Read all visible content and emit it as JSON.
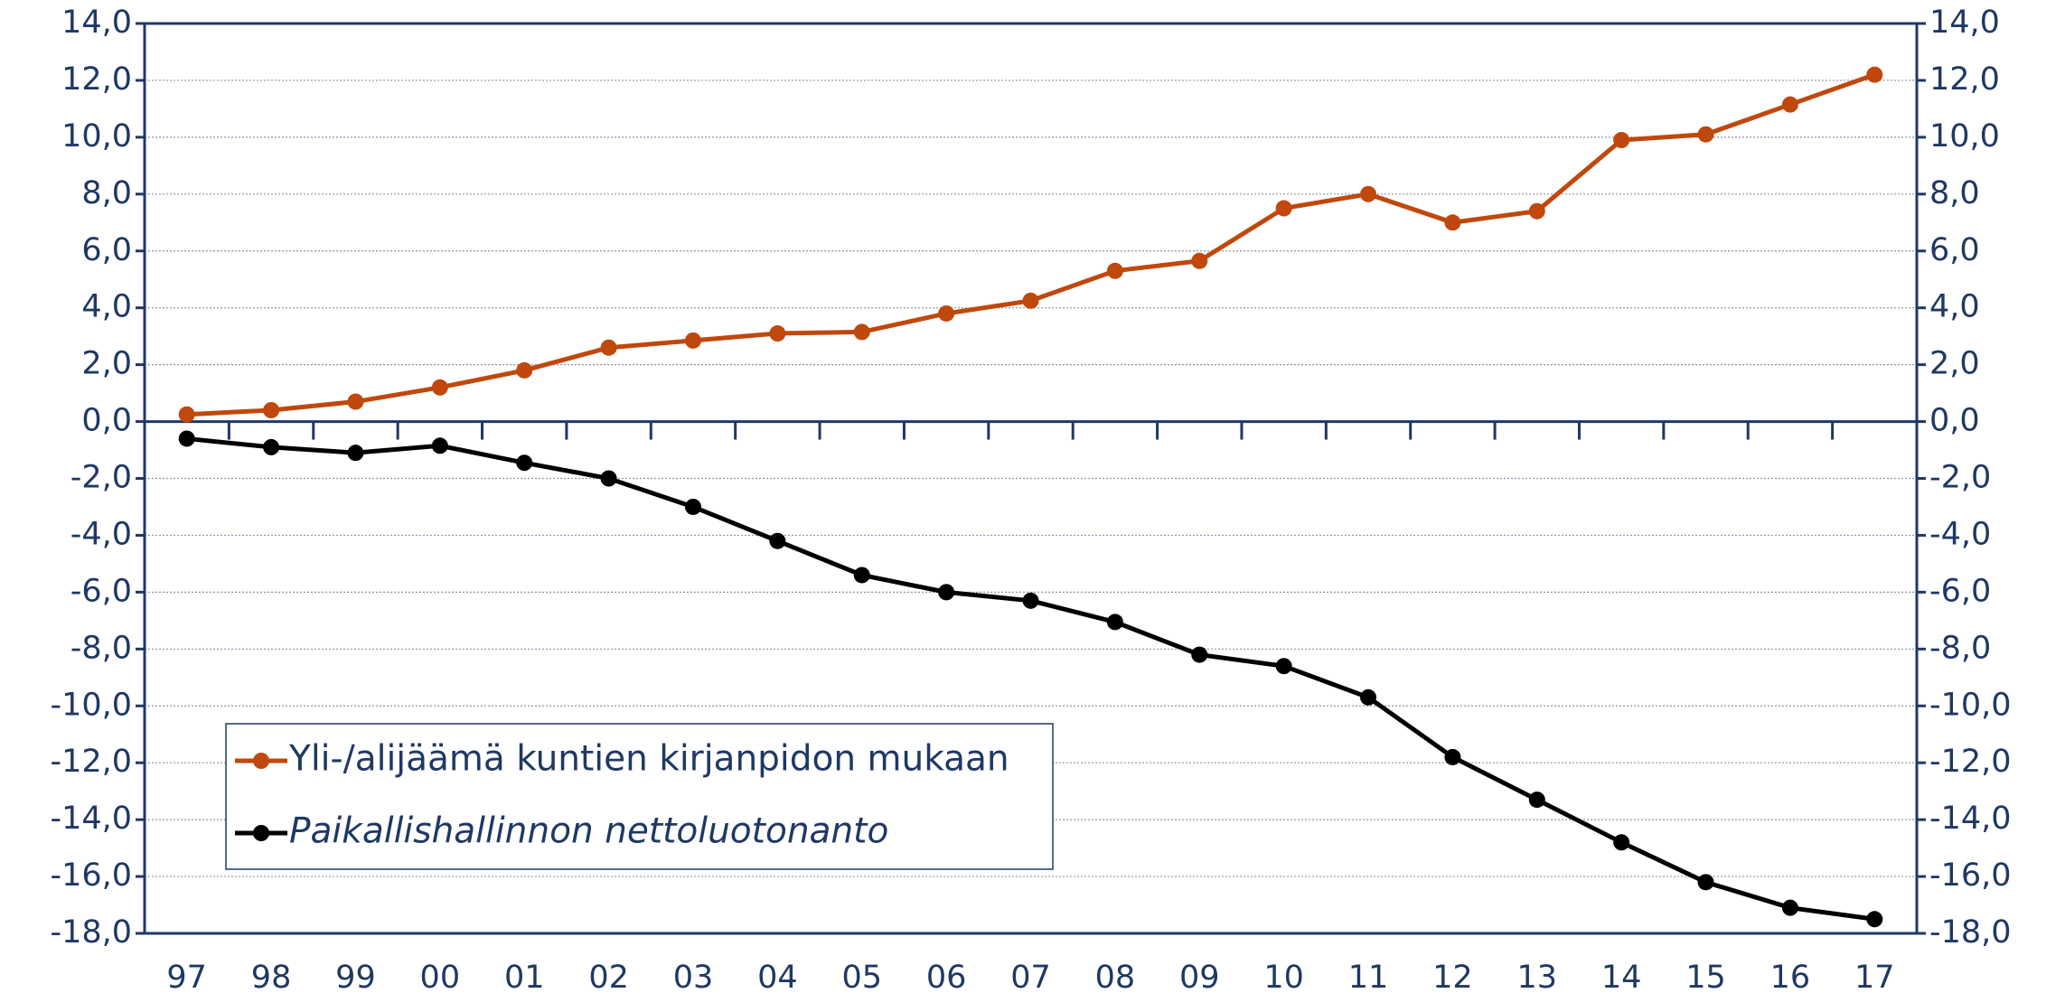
{
  "chart_data": {
    "type": "line",
    "categories": [
      "97",
      "98",
      "99",
      "00",
      "01",
      "02",
      "03",
      "04",
      "05",
      "06",
      "07",
      "08",
      "09",
      "10",
      "11",
      "12",
      "13",
      "14",
      "15",
      "16",
      "17"
    ],
    "series": [
      {
        "name": "Yli-/alijäämä kuntien kirjanpidon mukaan",
        "color": "#c0480c",
        "values": [
          0.25,
          0.4,
          0.7,
          1.2,
          1.8,
          2.6,
          2.85,
          3.1,
          3.15,
          3.8,
          4.25,
          5.3,
          5.65,
          7.5,
          8.0,
          7.0,
          7.4,
          9.9,
          10.1,
          11.15,
          12.2
        ]
      },
      {
        "name": "Paikallishallinnon nettoluotonanto",
        "color": "#000000",
        "values": [
          -0.6,
          -0.9,
          -1.1,
          -0.85,
          -1.45,
          -2.0,
          -3.0,
          -4.2,
          -5.4,
          -6.0,
          -6.3,
          -7.05,
          -8.2,
          -8.6,
          -9.7,
          -11.8,
          -13.3,
          -14.8,
          -16.2,
          -17.1,
          -17.5
        ]
      }
    ],
    "ylim": [
      -18,
      14
    ],
    "yticks": [
      {
        "value": -18,
        "label": "-18,0"
      },
      {
        "value": -16,
        "label": "-16,0"
      },
      {
        "value": -14,
        "label": "-14,0"
      },
      {
        "value": -12,
        "label": "-12,0"
      },
      {
        "value": -10,
        "label": "-10,0"
      },
      {
        "value": -8,
        "label": "-8,0"
      },
      {
        "value": -6,
        "label": "-6,0"
      },
      {
        "value": -4,
        "label": "-4,0"
      },
      {
        "value": -2,
        "label": "-2,0"
      },
      {
        "value": 0,
        "label": "0,0"
      },
      {
        "value": 2,
        "label": "2,0"
      },
      {
        "value": 4,
        "label": "4,0"
      },
      {
        "value": 6,
        "label": "6,0"
      },
      {
        "value": 8,
        "label": "8,0"
      },
      {
        "value": 10,
        "label": "10,0"
      },
      {
        "value": 12,
        "label": "12,0"
      },
      {
        "value": 14,
        "label": "14,0"
      }
    ],
    "grid": true
  }
}
